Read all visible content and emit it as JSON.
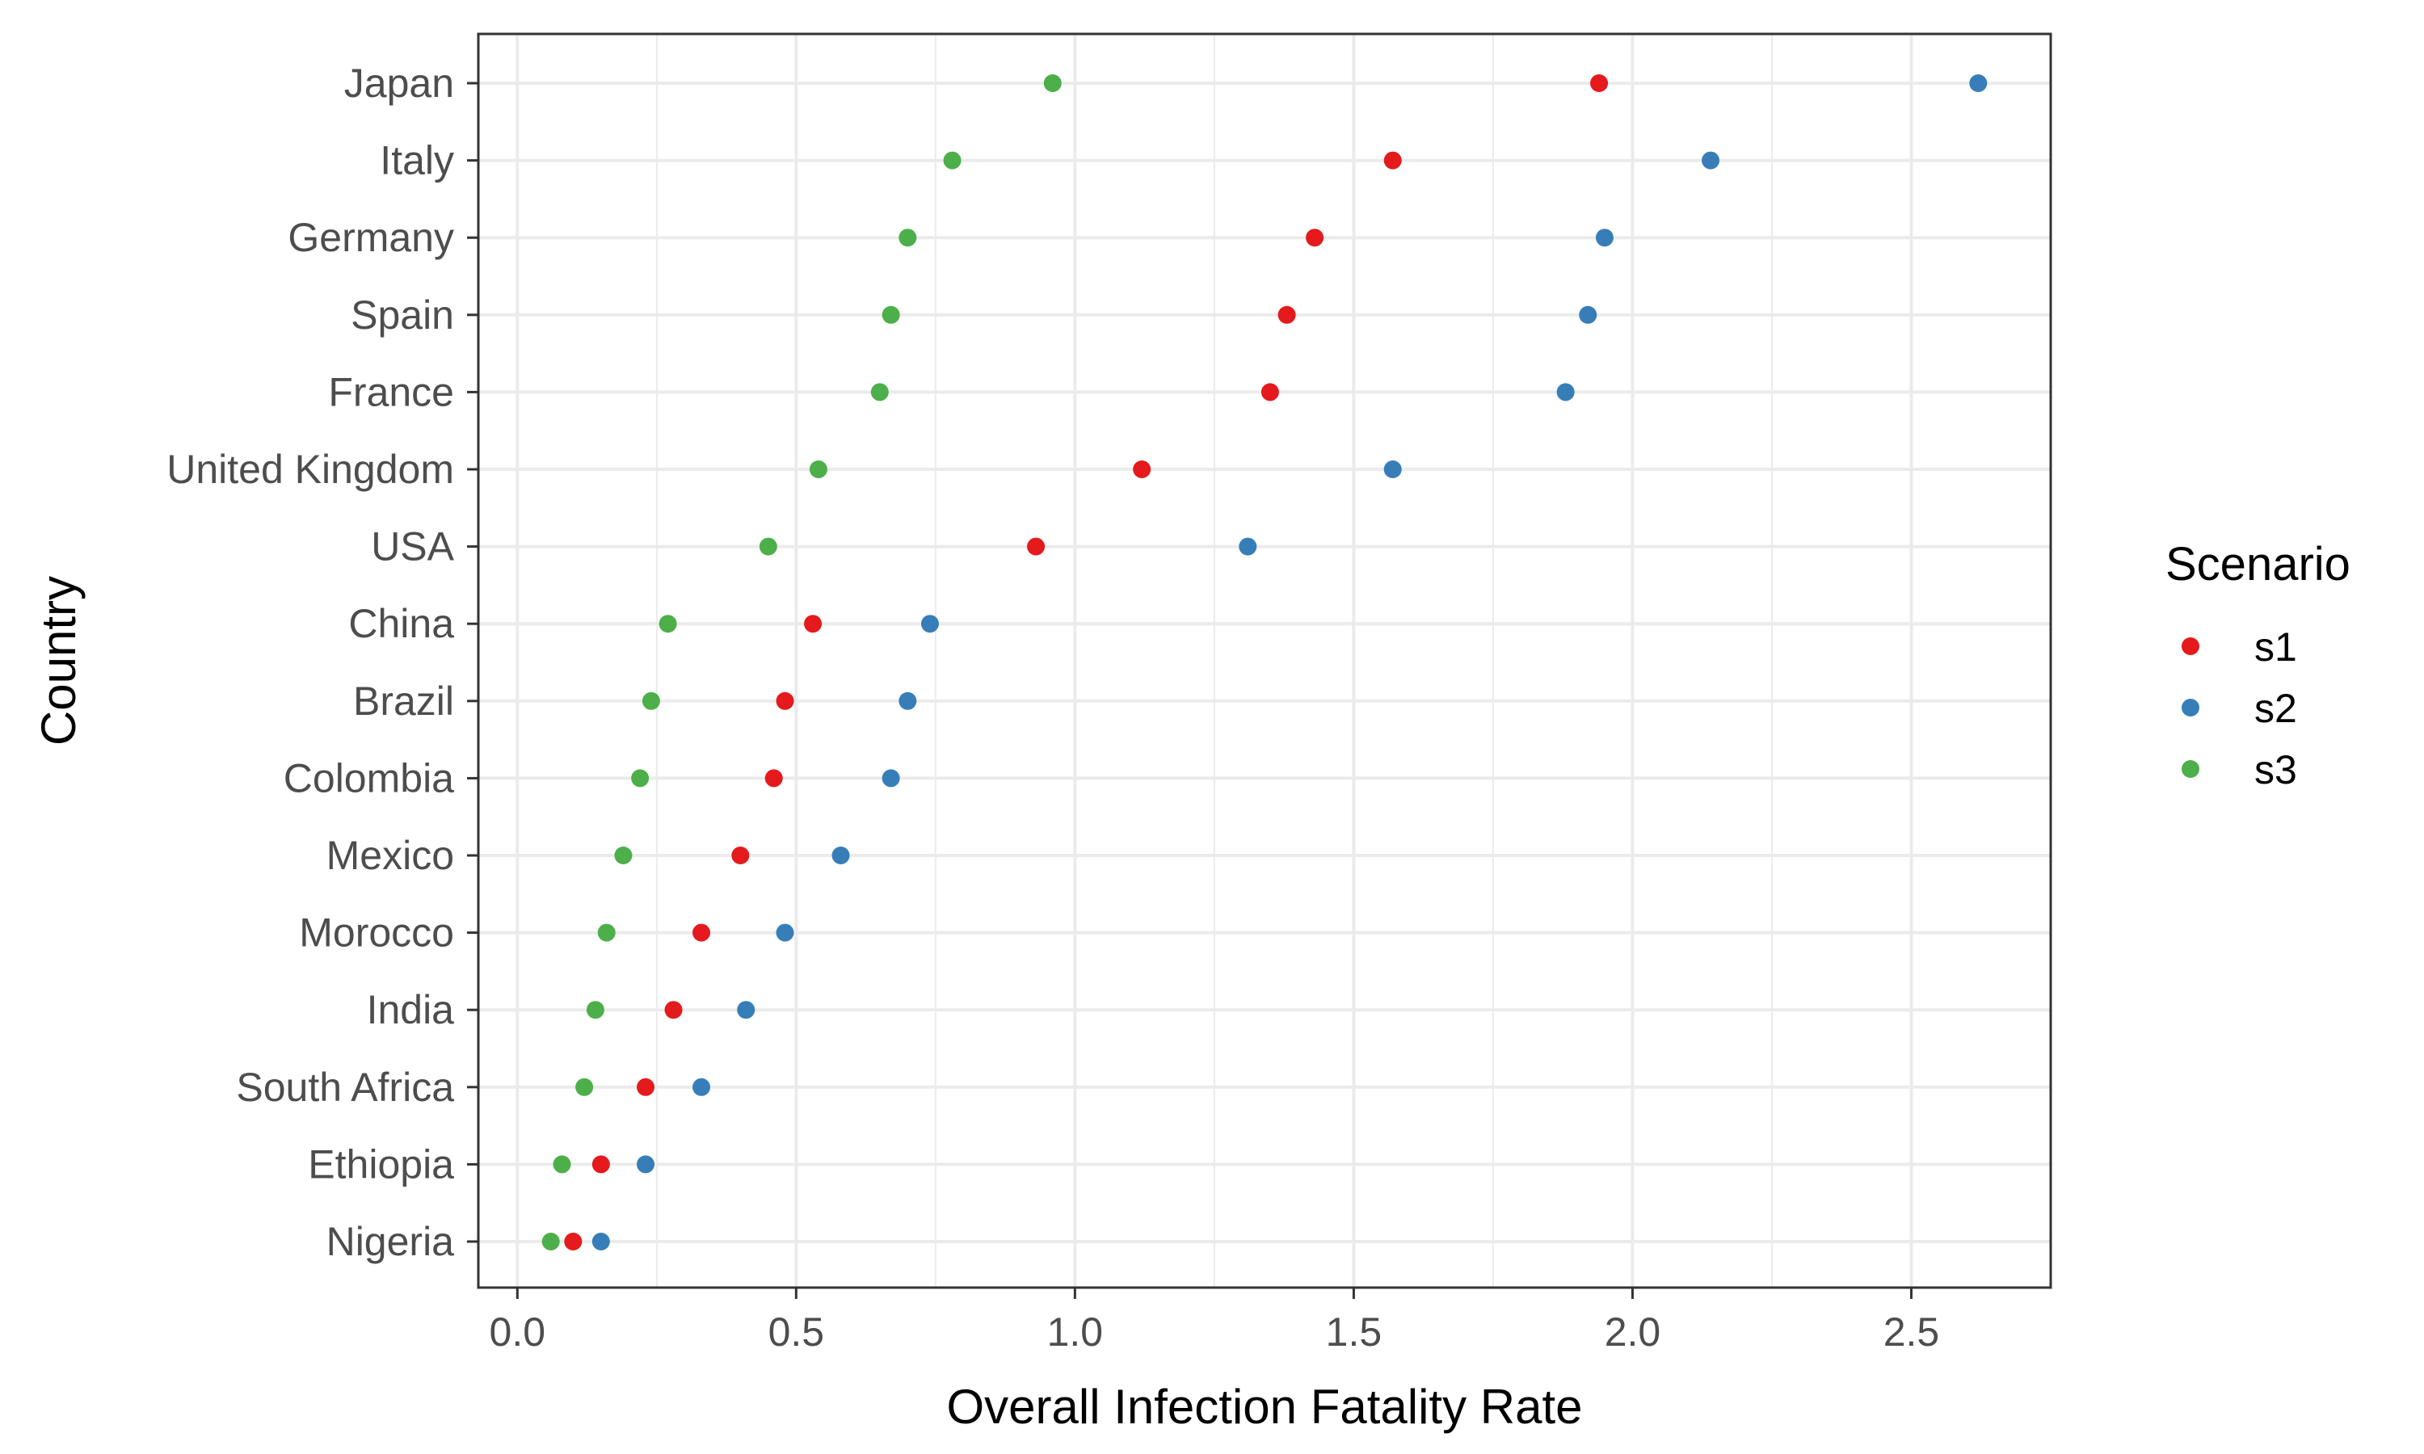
{
  "chart_data": {
    "type": "scatter",
    "xlabel": "Overall Infection Fatality Rate",
    "ylabel": "Country",
    "xlim": [
      -0.07,
      2.75
    ],
    "x_ticks": [
      "0.0",
      "0.5",
      "1.0",
      "1.5",
      "2.0",
      "2.5"
    ],
    "x_tick_values": [
      0,
      0.5,
      1.0,
      1.5,
      2.0,
      2.5
    ],
    "x_minor_values": [
      0.25,
      0.75,
      1.25,
      1.75,
      2.25
    ],
    "grid": true,
    "legend": {
      "title": "Scenario",
      "position": "right",
      "items": [
        {
          "label": "s1",
          "color": "#e41a1c"
        },
        {
          "label": "s2",
          "color": "#377eb8"
        },
        {
          "label": "s3",
          "color": "#4daf4a"
        }
      ]
    },
    "categories": [
      "Japan",
      "Italy",
      "Germany",
      "Spain",
      "France",
      "United Kingdom",
      "USA",
      "China",
      "Brazil",
      "Colombia",
      "Mexico",
      "Morocco",
      "India",
      "South Africa",
      "Ethiopia",
      "Nigeria"
    ],
    "series": [
      {
        "name": "s1",
        "color": "#e41a1c",
        "values": [
          1.94,
          1.57,
          1.43,
          1.38,
          1.35,
          1.12,
          0.93,
          0.53,
          0.48,
          0.46,
          0.4,
          0.33,
          0.28,
          0.23,
          0.15,
          0.1
        ]
      },
      {
        "name": "s2",
        "color": "#377eb8",
        "values": [
          2.62,
          2.14,
          1.95,
          1.92,
          1.88,
          1.57,
          1.31,
          0.74,
          0.7,
          0.67,
          0.58,
          0.48,
          0.41,
          0.33,
          0.23,
          0.15
        ]
      },
      {
        "name": "s3",
        "color": "#4daf4a",
        "values": [
          0.96,
          0.78,
          0.7,
          0.67,
          0.65,
          0.54,
          0.45,
          0.27,
          0.24,
          0.22,
          0.19,
          0.16,
          0.14,
          0.12,
          0.08,
          0.06
        ]
      }
    ]
  }
}
